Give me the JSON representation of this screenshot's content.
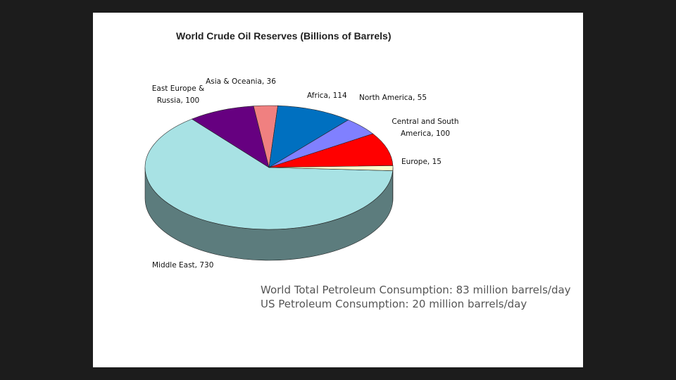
{
  "chart_data": {
    "type": "pie",
    "title": "World Crude Oil  Reserves (Billions of Barrels)",
    "values": [
      730,
      100,
      36,
      114,
      55,
      100,
      15
    ],
    "value_labels": [
      "Middle East, 730",
      "East Europe & Russia, 100",
      "Asia & Oceania, 36",
      "Africa, 114",
      "North America, 55",
      "Central and South America, 100",
      "Europe, 15"
    ],
    "colors": [
      "#a8e2e4",
      "#660080",
      "#f08080",
      "#0070c0",
      "#8080ff",
      "#ff0000",
      "#ffffcc"
    ]
  },
  "notes": [
    "World Total Petroleum Consumption: 83 million barrels/day",
    "US Petroleum Consumption: 20 million barrels/day"
  ]
}
